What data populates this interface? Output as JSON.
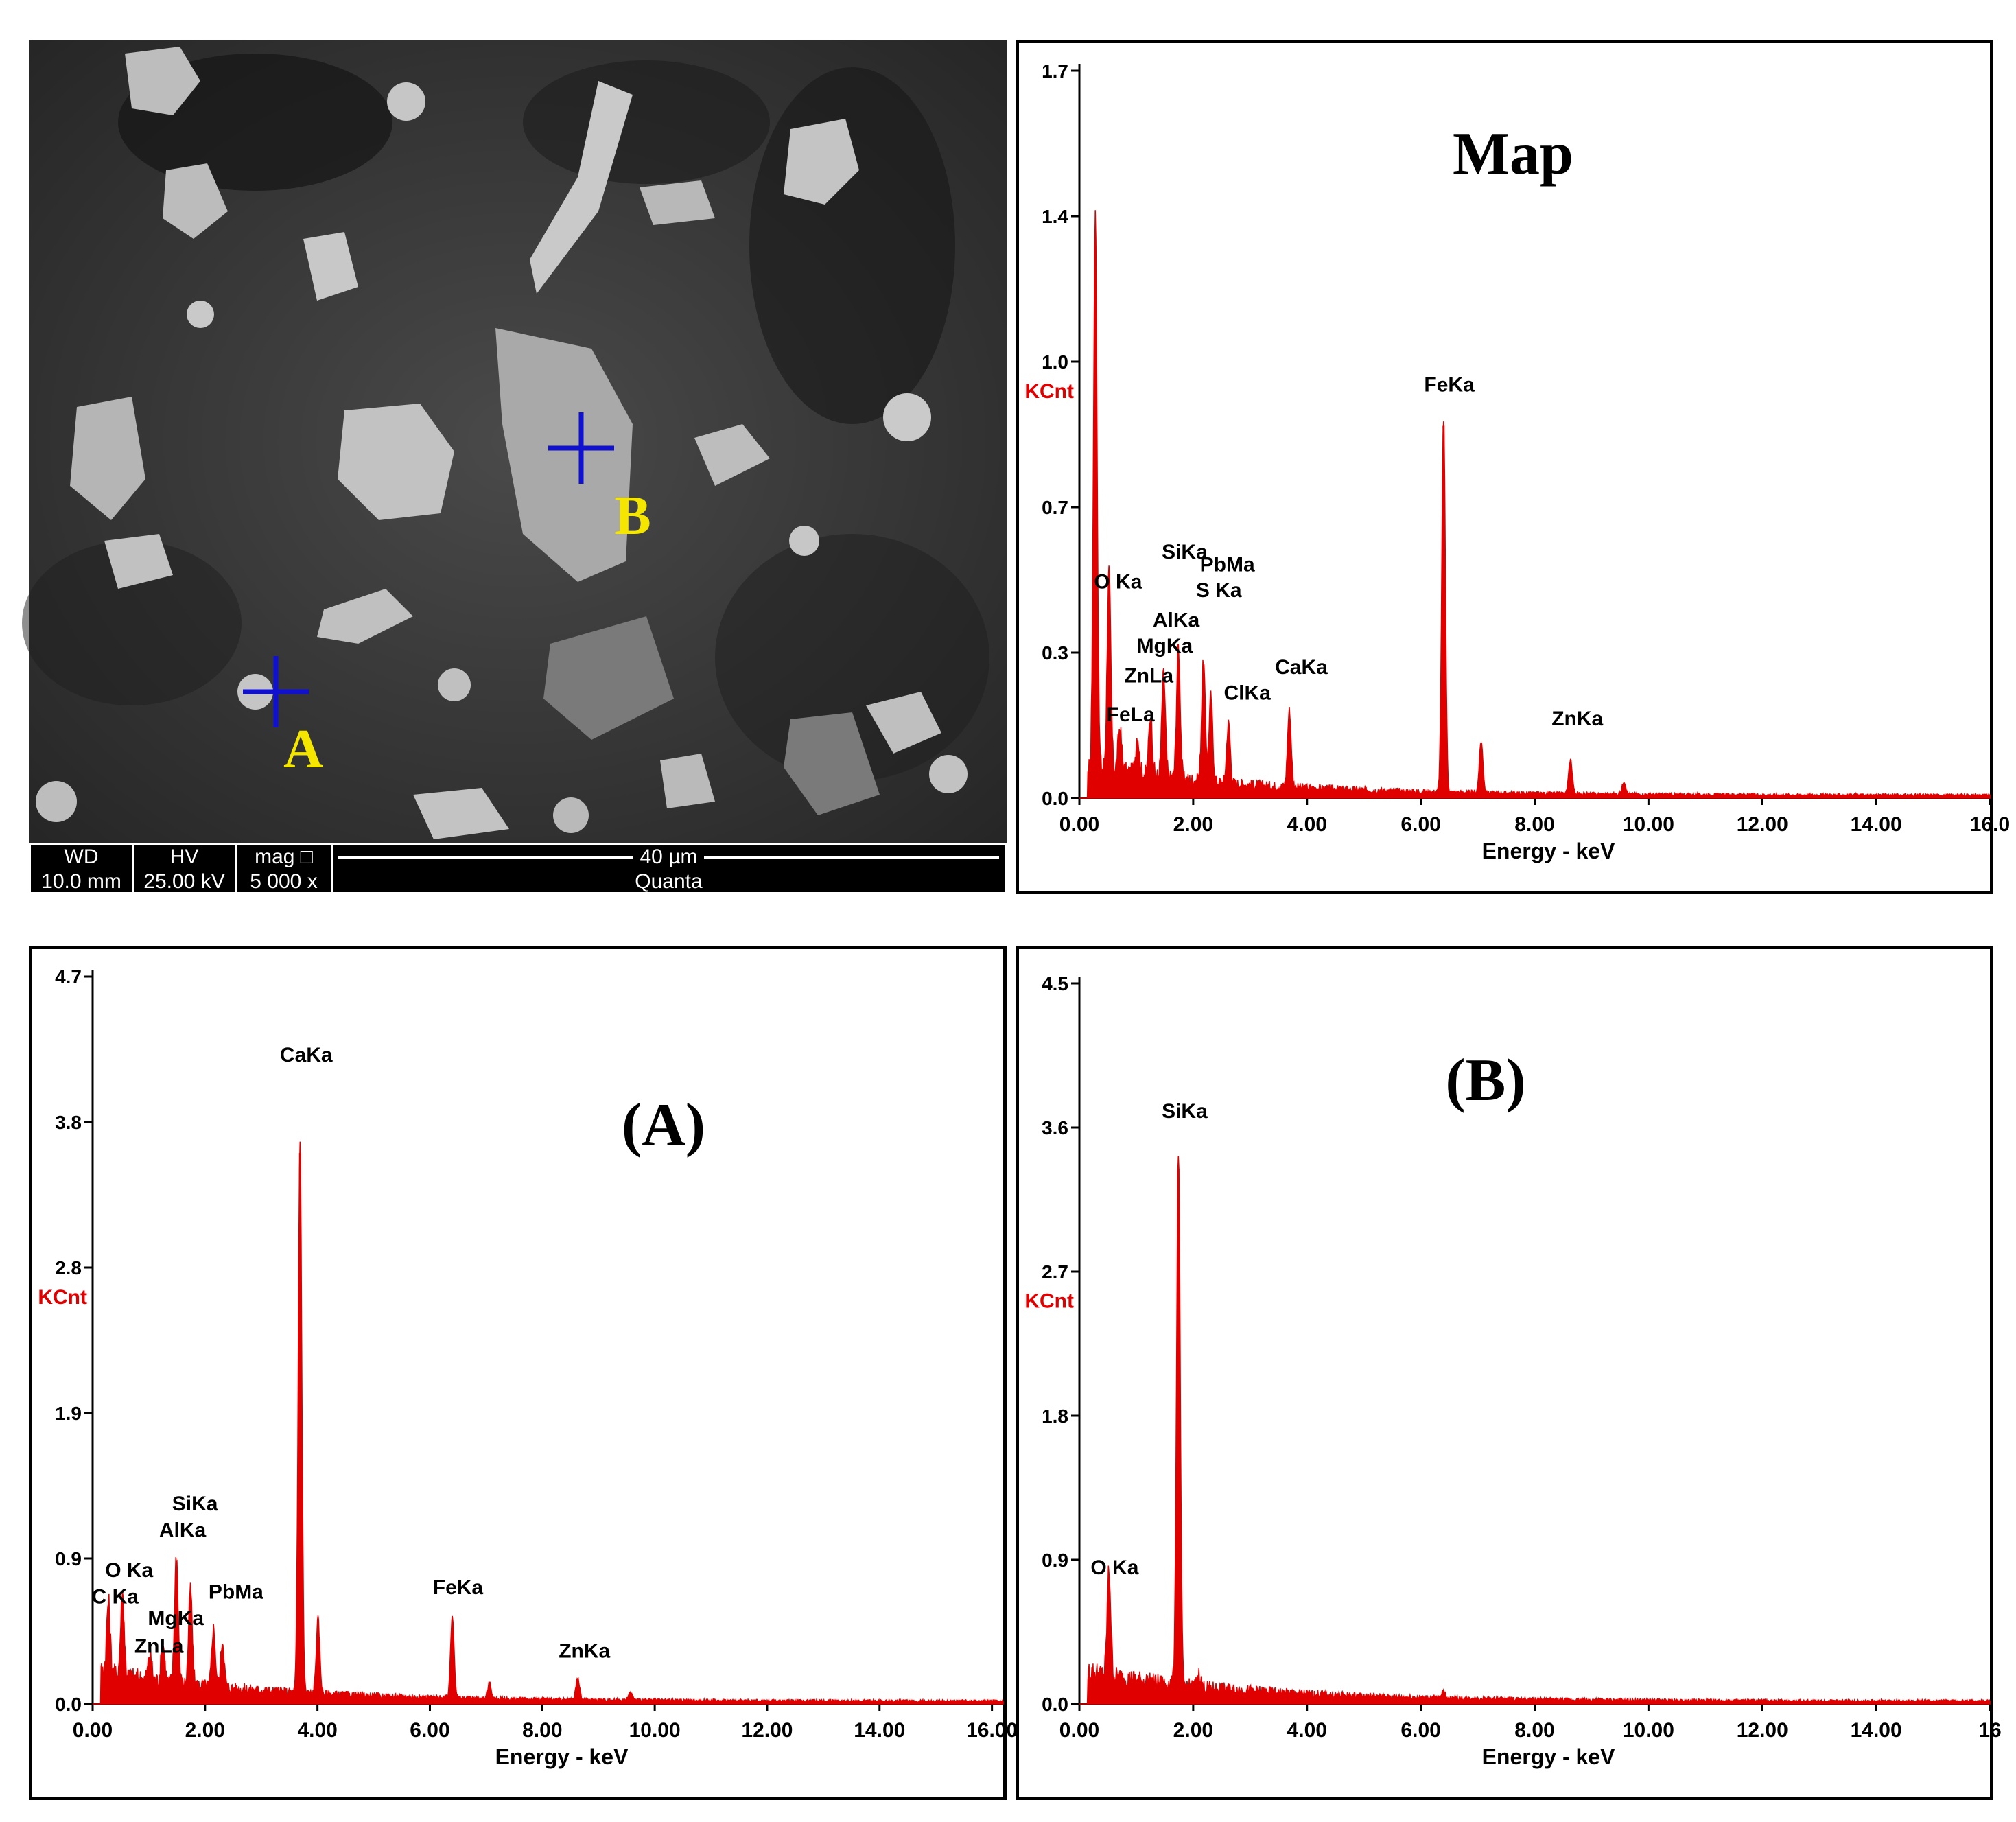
{
  "sem_image": {
    "markers": [
      {
        "label": "A"
      },
      {
        "label": "B"
      }
    ],
    "info_bar": {
      "wd_label": "WD",
      "wd_value": "10.0 mm",
      "hv_label": "HV",
      "hv_value": "25.00 kV",
      "mag_label": "mag",
      "mag_value": "5 000 x",
      "scale_label": "40 µm",
      "instrument": "Quanta"
    },
    "colors": {
      "marker": "#1010d0",
      "label": "#f5e600"
    }
  },
  "chart_data": [
    {
      "type": "area",
      "title": "Map",
      "xlabel": "Energy - keV",
      "ylabel": "KCnt",
      "xlim": [
        0,
        16
      ],
      "ylim": [
        0,
        1.7
      ],
      "xticks": [
        "0.00",
        "2.00",
        "4.00",
        "6.00",
        "8.00",
        "10.00",
        "12.00",
        "14.00",
        "16.0"
      ],
      "yticks": [
        "0.0",
        "0.3",
        "0.7",
        "1.0",
        "1.4",
        "1.7"
      ],
      "ytick_values": [
        0,
        0.34,
        0.68,
        1.02,
        1.36,
        1.7
      ],
      "series_color": "#e00000",
      "peaks": [
        {
          "x": 0.28,
          "y": 1.29
        },
        {
          "x": 0.52,
          "y": 0.46
        },
        {
          "x": 0.71,
          "y": 0.1
        },
        {
          "x": 1.02,
          "y": 0.09
        },
        {
          "x": 1.25,
          "y": 0.14
        },
        {
          "x": 1.48,
          "y": 0.24
        },
        {
          "x": 1.74,
          "y": 0.31
        },
        {
          "x": 2.18,
          "y": 0.28
        },
        {
          "x": 2.31,
          "y": 0.2
        },
        {
          "x": 2.62,
          "y": 0.14
        },
        {
          "x": 3.69,
          "y": 0.18
        },
        {
          "x": 6.4,
          "y": 0.87
        },
        {
          "x": 7.06,
          "y": 0.12
        },
        {
          "x": 8.63,
          "y": 0.08
        },
        {
          "x": 9.57,
          "y": 0.03
        }
      ],
      "annotations": [
        {
          "text": "O Ka",
          "x": 0.68,
          "y": 0.49
        },
        {
          "text": "SiKa",
          "x": 1.85,
          "y": 0.56
        },
        {
          "text": "PbMa",
          "x": 2.6,
          "y": 0.53
        },
        {
          "text": "S Ka",
          "x": 2.45,
          "y": 0.47
        },
        {
          "text": "AlKa",
          "x": 1.7,
          "y": 0.4
        },
        {
          "text": "MgKa",
          "x": 1.5,
          "y": 0.34
        },
        {
          "text": "ZnLa",
          "x": 1.22,
          "y": 0.27
        },
        {
          "text": "ClKa",
          "x": 2.95,
          "y": 0.23
        },
        {
          "text": "CaKa",
          "x": 3.9,
          "y": 0.29
        },
        {
          "text": "FeLa",
          "x": 0.9,
          "y": 0.18
        },
        {
          "text": "FeKa",
          "x": 6.5,
          "y": 0.95
        },
        {
          "text": "ZnKa",
          "x": 8.75,
          "y": 0.17
        }
      ]
    },
    {
      "type": "area",
      "title": "(A)",
      "xlabel": "Energy - keV",
      "ylabel": "KCnt",
      "xlim": [
        0,
        16.2
      ],
      "ylim": [
        0,
        4.7
      ],
      "xticks": [
        "0.00",
        "2.00",
        "4.00",
        "6.00",
        "8.00",
        "10.00",
        "12.00",
        "14.00",
        "16.00"
      ],
      "yticks": [
        "0.0",
        "0.9",
        "1.9",
        "2.8",
        "3.8",
        "4.7"
      ],
      "ytick_values": [
        0,
        0.94,
        1.88,
        2.82,
        3.76,
        4.7
      ],
      "series_color": "#e00000",
      "peaks": [
        {
          "x": 0.28,
          "y": 0.46
        },
        {
          "x": 0.53,
          "y": 0.53
        },
        {
          "x": 1.02,
          "y": 0.17
        },
        {
          "x": 1.25,
          "y": 0.25
        },
        {
          "x": 1.49,
          "y": 0.83
        },
        {
          "x": 1.74,
          "y": 0.62
        },
        {
          "x": 2.15,
          "y": 0.38
        },
        {
          "x": 2.31,
          "y": 0.3
        },
        {
          "x": 3.69,
          "y": 3.56
        },
        {
          "x": 4.01,
          "y": 0.48
        },
        {
          "x": 6.4,
          "y": 0.53
        },
        {
          "x": 7.06,
          "y": 0.1
        },
        {
          "x": 8.63,
          "y": 0.14
        },
        {
          "x": 9.57,
          "y": 0.05
        }
      ],
      "annotations": [
        {
          "text": "C Ka",
          "x": 0.4,
          "y": 0.65
        },
        {
          "text": "O Ka",
          "x": 0.65,
          "y": 0.82
        },
        {
          "text": "SiKa",
          "x": 1.82,
          "y": 1.25
        },
        {
          "text": "AlKa",
          "x": 1.6,
          "y": 1.08
        },
        {
          "text": "PbMa",
          "x": 2.55,
          "y": 0.68
        },
        {
          "text": "MgKa",
          "x": 1.48,
          "y": 0.51
        },
        {
          "text": "ZnLa",
          "x": 1.18,
          "y": 0.33
        },
        {
          "text": "CaKa",
          "x": 3.8,
          "y": 4.15
        },
        {
          "text": "FeKa",
          "x": 6.5,
          "y": 0.71
        },
        {
          "text": "ZnKa",
          "x": 8.75,
          "y": 0.3
        }
      ]
    },
    {
      "type": "area",
      "title": "(B)",
      "xlabel": "Energy - keV",
      "ylabel": "KCnt",
      "xlim": [
        0,
        16
      ],
      "ylim": [
        0,
        4.5
      ],
      "xticks": [
        "0.00",
        "2.00",
        "4.00",
        "6.00",
        "8.00",
        "10.00",
        "12.00",
        "14.00",
        "16"
      ],
      "yticks": [
        "0.0",
        "0.9",
        "1.8",
        "2.7",
        "3.6",
        "4.5"
      ],
      "ytick_values": [
        0,
        0.9,
        1.8,
        2.7,
        3.6,
        4.5
      ],
      "series_color": "#e00000",
      "peaks": [
        {
          "x": 0.52,
          "y": 0.66
        },
        {
          "x": 1.74,
          "y": 3.34
        },
        {
          "x": 2.1,
          "y": 0.08
        },
        {
          "x": 6.4,
          "y": 0.04
        }
      ],
      "annotations": [
        {
          "text": "O Ka",
          "x": 0.62,
          "y": 0.81
        },
        {
          "text": "SiKa",
          "x": 1.85,
          "y": 3.66
        }
      ]
    }
  ]
}
